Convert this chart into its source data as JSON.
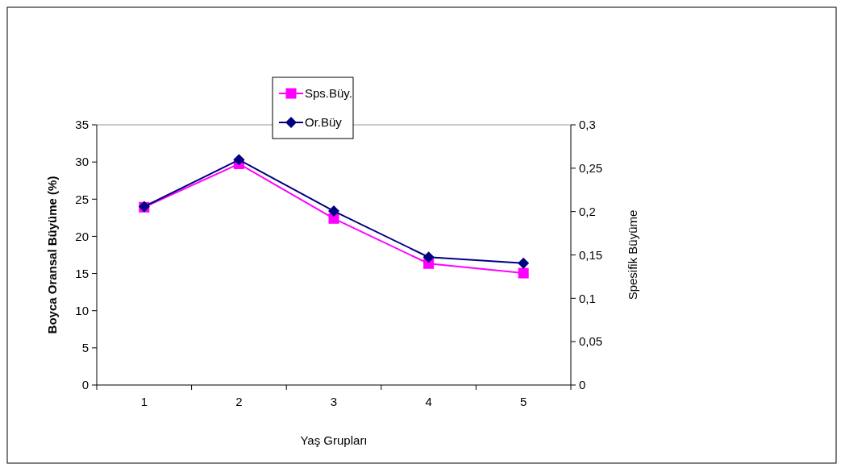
{
  "chart_data": {
    "type": "line",
    "xlabel": "Yaş Grupları",
    "ylabel": "Boyca Oransal Büyüme (%)",
    "y2label": "Spesifik Büyüme",
    "categories": [
      "1",
      "2",
      "3",
      "4",
      "5"
    ],
    "ylim": [
      0,
      35
    ],
    "yticks": [
      0,
      5,
      10,
      15,
      20,
      25,
      30,
      35
    ],
    "y2lim": [
      0,
      0.3
    ],
    "y2ticks": [
      {
        "value": 0,
        "label": "0"
      },
      {
        "value": 0.05,
        "label": "0,05"
      },
      {
        "value": 0.1,
        "label": "0,1"
      },
      {
        "value": 0.15,
        "label": "0,15"
      },
      {
        "value": 0.2,
        "label": "0,2"
      },
      {
        "value": 0.25,
        "label": "0,25"
      },
      {
        "value": 0.3,
        "label": "0,3"
      }
    ],
    "legend": "top",
    "grid": false,
    "series": [
      {
        "name": "Sps.Büy.",
        "color": "#ff00ff",
        "axis": "y2",
        "marker": "square",
        "values": [
          0.205,
          0.255,
          0.192,
          0.14,
          0.129
        ]
      },
      {
        "name": "Or.Büy",
        "color": "#000080",
        "marker": "diamond",
        "values": [
          24.0,
          30.3,
          23.4,
          17.2,
          16.4
        ]
      }
    ]
  }
}
